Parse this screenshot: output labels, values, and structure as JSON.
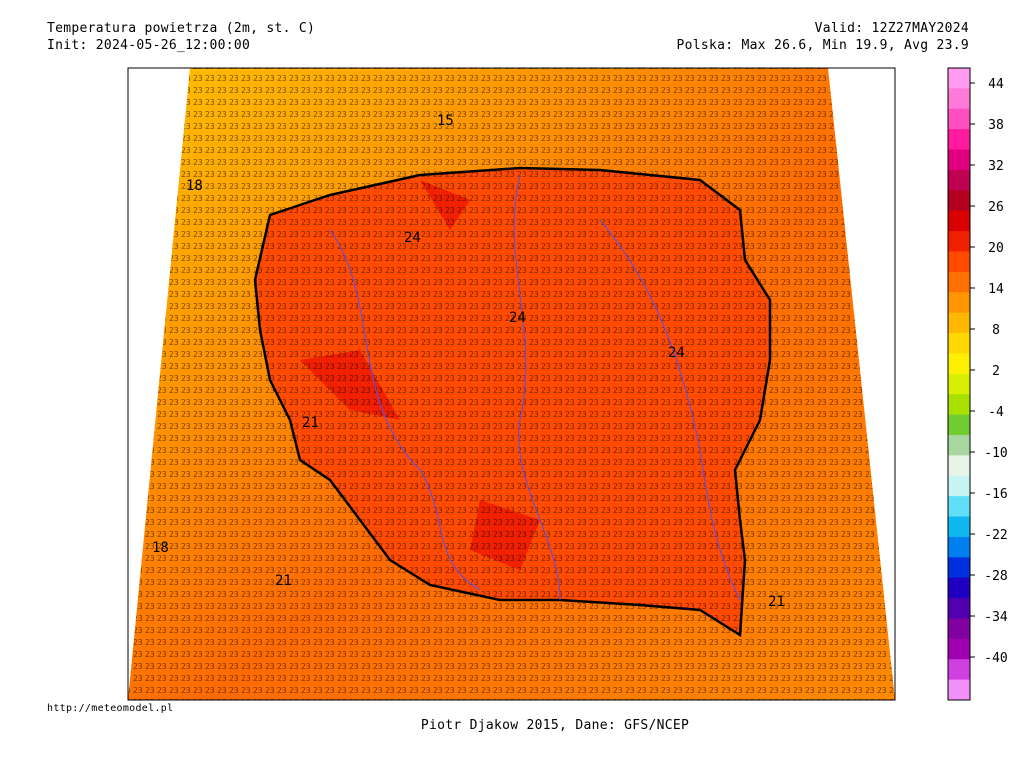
{
  "header": {
    "title": "Temperatura powietrza (2m, st. C)",
    "init": "Init: 2024-05-26_12:00:00",
    "valid": "Valid: 12Z27MAY2024",
    "stats": "Polska: Max 26.6, Min 19.9, Avg 23.9"
  },
  "footer": {
    "url": "http://meteomodel.pl",
    "credit": "Piotr Djakow 2015, Dane: GFS/NCEP"
  },
  "map": {
    "contour_labels": [
      "15",
      "18",
      "18",
      "21",
      "21",
      "24",
      "24",
      "24",
      "21"
    ]
  },
  "colorbar": {
    "ticks": [
      44,
      38,
      32,
      26,
      20,
      14,
      8,
      2,
      -4,
      -10,
      -16,
      -22,
      -28,
      -34,
      -40
    ],
    "colors": [
      "#ff9cf0",
      "#ff7ad8",
      "#ff4fc0",
      "#ff1aa0",
      "#e0007e",
      "#c00050",
      "#b40020",
      "#d80000",
      "#f02000",
      "#ff4a00",
      "#ff7000",
      "#ff9600",
      "#ffb800",
      "#ffd800",
      "#fff000",
      "#d8f000",
      "#a8e000",
      "#70cc30",
      "#a8d8a0",
      "#e8f4e8",
      "#c8f4f4",
      "#60e0f8",
      "#10b8f0",
      "#0080f0",
      "#0030e0",
      "#2000c0",
      "#5000b0",
      "#8000a0",
      "#a000b0",
      "#d040e0",
      "#f090f8"
    ]
  }
}
